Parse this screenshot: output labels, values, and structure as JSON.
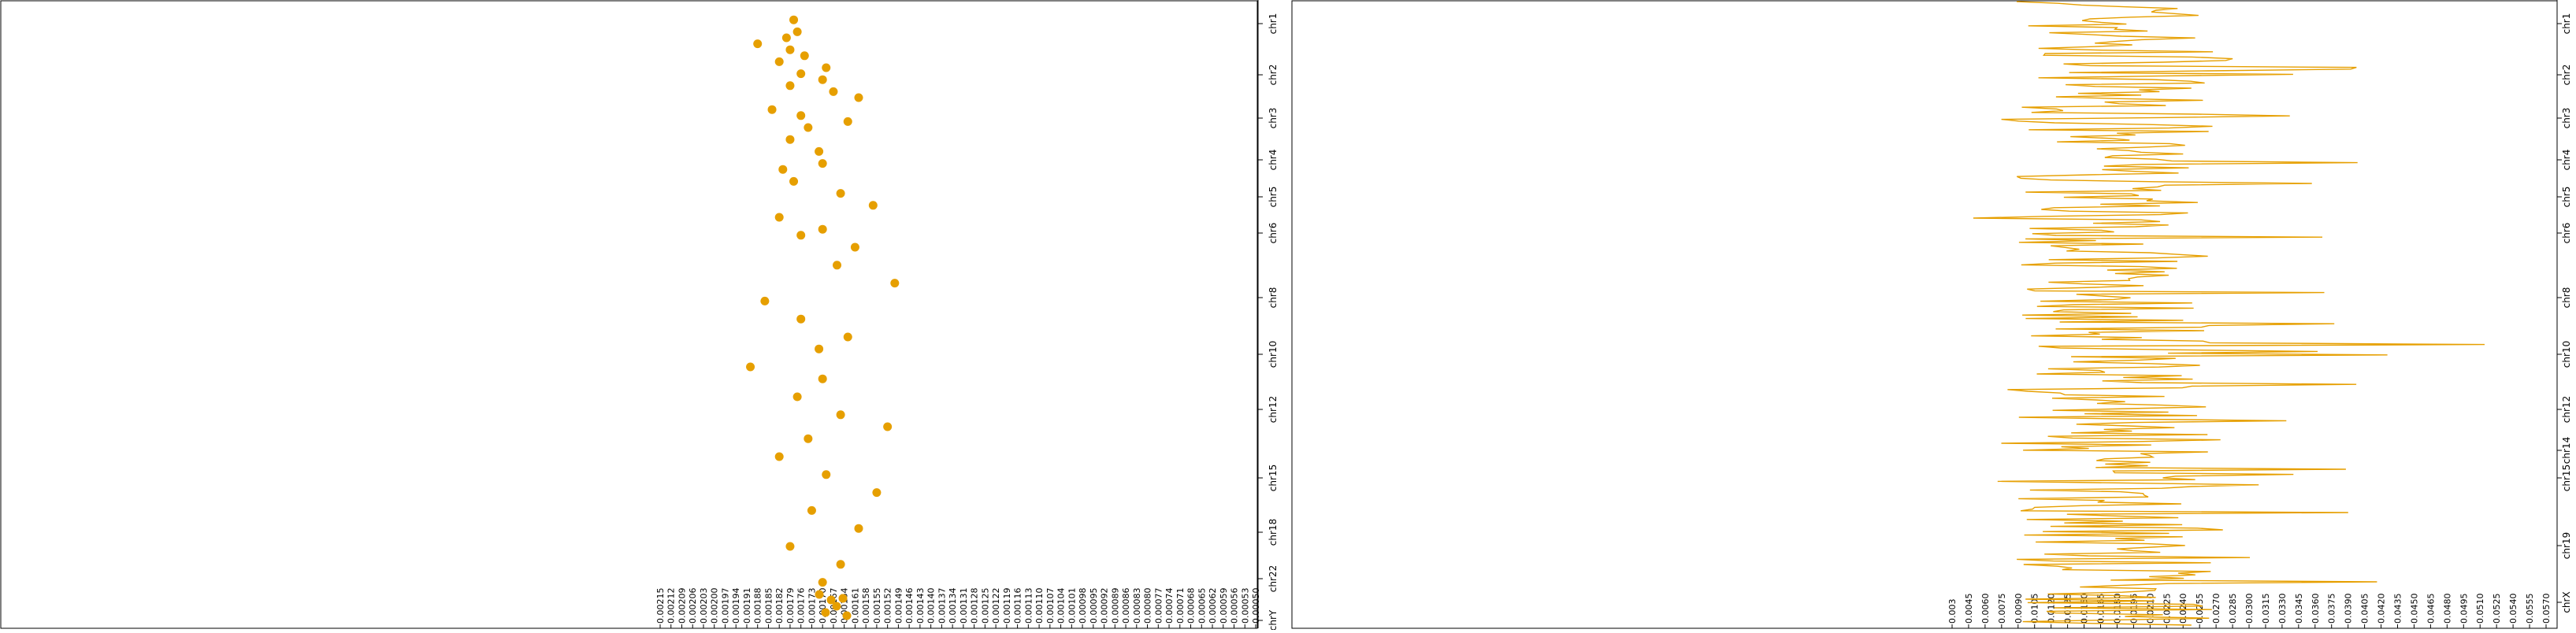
{
  "colors": {
    "accent": "#e69f00",
    "axis": "#000000",
    "background": "#ffffff"
  },
  "chart_data": [
    {
      "type": "scatter",
      "title": "",
      "orientation": "horizontal-values, chromosome axis on right (rotated labels)",
      "chromosome_labels": [
        "chr1",
        "chr2",
        "chr3",
        "chr4",
        "chr5",
        "chr6",
        "chr8",
        "chr10",
        "chr12",
        "chr15",
        "chr18",
        "chr22",
        "chrY"
      ],
      "x_tick_labels": [
        "0.00215",
        "0.00212",
        "0.00209",
        "0.00206",
        "0.00203",
        "0.00200",
        "0.00197",
        "0.00194",
        "0.00191",
        "0.00188",
        "0.00185",
        "0.00182",
        "0.00179",
        "0.00176",
        "0.00173",
        "0.00170",
        "0.00167",
        "0.00164",
        "0.00161",
        "0.00158",
        "0.00155",
        "0.00152",
        "0.00149",
        "0.00146",
        "0.00143",
        "0.00140",
        "0.00137",
        "0.00134",
        "0.00131",
        "0.00128",
        "0.00125",
        "0.00122",
        "0.00119",
        "0.00116",
        "0.00113",
        "0.00110",
        "0.00107",
        "0.00104",
        "0.00101",
        "0.00098",
        "0.00095",
        "0.00092",
        "0.00089",
        "0.00086",
        "0.00083",
        "0.00080",
        "0.00077",
        "0.00074",
        "0.00071",
        "0.00068",
        "0.00065",
        "0.00062",
        "0.00059",
        "0.00056",
        "0.00053",
        "0.00050"
      ],
      "xlim": [
        0.00215,
        0.0005
      ],
      "points": [
        [
          0.00178,
          0.02
        ],
        [
          0.00177,
          0.04
        ],
        [
          0.0018,
          0.05
        ],
        [
          0.00179,
          0.07
        ],
        [
          0.00188,
          0.06
        ],
        [
          0.00175,
          0.08
        ],
        [
          0.00182,
          0.09
        ],
        [
          0.00169,
          0.1
        ],
        [
          0.00176,
          0.11
        ],
        [
          0.0017,
          0.12
        ],
        [
          0.00179,
          0.13
        ],
        [
          0.00167,
          0.14
        ],
        [
          0.0016,
          0.15
        ],
        [
          0.00184,
          0.17
        ],
        [
          0.00176,
          0.18
        ],
        [
          0.00163,
          0.19
        ],
        [
          0.00174,
          0.2
        ],
        [
          0.00179,
          0.22
        ],
        [
          0.00171,
          0.24
        ],
        [
          0.0017,
          0.26
        ],
        [
          0.00181,
          0.27
        ],
        [
          0.00178,
          0.29
        ],
        [
          0.00165,
          0.31
        ],
        [
          0.00156,
          0.33
        ],
        [
          0.00182,
          0.35
        ],
        [
          0.0017,
          0.37
        ],
        [
          0.00176,
          0.38
        ],
        [
          0.00161,
          0.4
        ],
        [
          0.00166,
          0.43
        ],
        [
          0.0015,
          0.46
        ],
        [
          0.00186,
          0.49
        ],
        [
          0.00176,
          0.52
        ],
        [
          0.00163,
          0.55
        ],
        [
          0.00171,
          0.57
        ],
        [
          0.0019,
          0.6
        ],
        [
          0.0017,
          0.62
        ],
        [
          0.00177,
          0.65
        ],
        [
          0.00165,
          0.68
        ],
        [
          0.00152,
          0.7
        ],
        [
          0.00174,
          0.72
        ],
        [
          0.00182,
          0.75
        ],
        [
          0.00169,
          0.78
        ],
        [
          0.00155,
          0.81
        ],
        [
          0.00173,
          0.84
        ],
        [
          0.0016,
          0.87
        ],
        [
          0.00179,
          0.9
        ],
        [
          0.00165,
          0.93
        ],
        [
          0.0017,
          0.96
        ]
      ]
    },
    {
      "type": "line",
      "title": "",
      "chromosome_labels": [
        "chr1",
        "chr2",
        "chr3",
        "chr4",
        "chr5",
        "chr6",
        "chr8",
        "chr10",
        "chr12",
        "chr14",
        "chr15",
        "chr19",
        "chrX"
      ],
      "x_tick_labels": [
        "0.003",
        "0.0045",
        "0.0060",
        "0.0075",
        "0.0090",
        "0.0105",
        "0.0120",
        "0.0135",
        "0.0150",
        "0.0165",
        "0.0180",
        "0.0195",
        "0.0210",
        "0.0225",
        "0.0240",
        "0.0255",
        "0.0270",
        "0.0285",
        "0.0300",
        "0.0315",
        "0.0330",
        "0.0345",
        "0.0360",
        "0.0375",
        "0.0390",
        "0.0405",
        "0.0420",
        "0.0435",
        "0.0450",
        "0.0465",
        "0.0480",
        "0.0495",
        "0.0510",
        "0.0525",
        "0.0540",
        "0.0555",
        "0.0570"
      ],
      "xlim": [
        0.003,
        0.057
      ]
    }
  ]
}
